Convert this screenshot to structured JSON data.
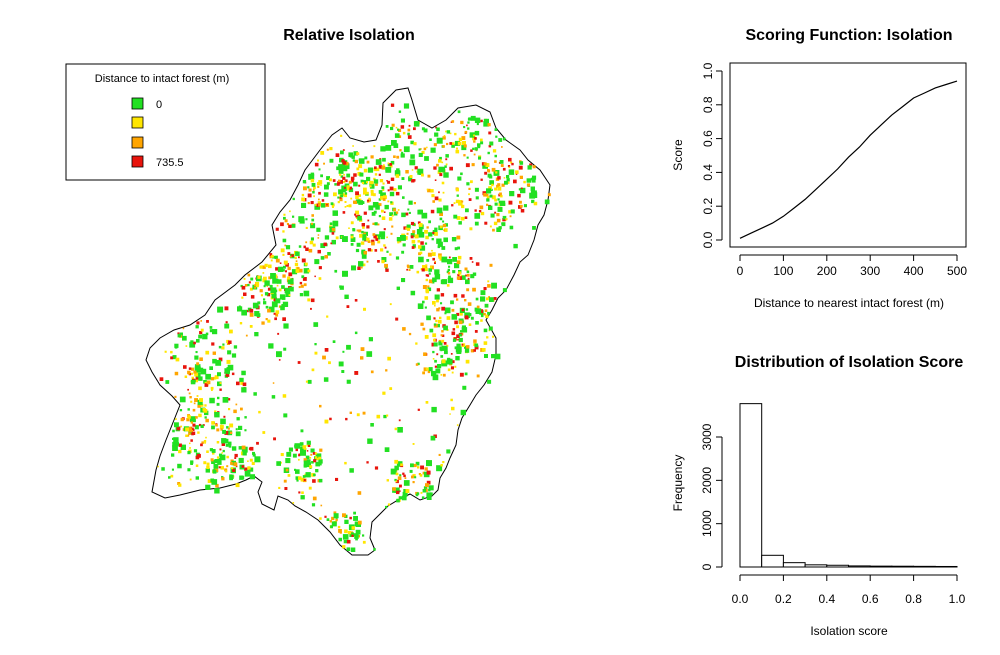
{
  "chart_data": [
    {
      "type": "map",
      "title": "Relative Isolation",
      "legend": {
        "title": "Distance to intact forest (m)",
        "placement": "top-left",
        "entries": [
          {
            "label": "0",
            "color": "#22e022"
          },
          {
            "label": "",
            "color": "#ffe600"
          },
          {
            "label": "",
            "color": "#ffa500"
          },
          {
            "label": "735.5",
            "color": "#e8140c"
          }
        ]
      },
      "colors": {
        "boundary": "#000000",
        "background": "#ffffff"
      }
    },
    {
      "type": "line",
      "title": "Scoring Function: Isolation",
      "xlabel": "Distance to nearest intact forest (m)",
      "ylabel": "Score",
      "xlim": [
        0,
        500
      ],
      "ylim": [
        0,
        1
      ],
      "xticks": [
        "0",
        "100",
        "200",
        "300",
        "400",
        "500"
      ],
      "yticks": [
        "0.0",
        "0.2",
        "0.4",
        "0.6",
        "0.8",
        "1.0"
      ],
      "x": [
        0,
        25,
        50,
        75,
        100,
        125,
        150,
        175,
        200,
        225,
        250,
        275,
        300,
        325,
        350,
        375,
        400,
        425,
        450,
        475,
        500
      ],
      "y": [
        0.01,
        0.04,
        0.07,
        0.1,
        0.14,
        0.19,
        0.24,
        0.3,
        0.36,
        0.42,
        0.49,
        0.55,
        0.62,
        0.68,
        0.74,
        0.79,
        0.84,
        0.87,
        0.9,
        0.92,
        0.94
      ],
      "grid": false
    },
    {
      "type": "histogram",
      "title": "Distribution of Isolation Score",
      "xlabel": "Isolation score",
      "ylabel": "Frequency",
      "xlim": [
        0,
        1
      ],
      "ylim": [
        0,
        3800
      ],
      "xticks": [
        "0.0",
        "0.2",
        "0.4",
        "0.6",
        "0.8",
        "1.0"
      ],
      "yticks": [
        "0",
        "1000",
        "2000",
        "3000"
      ],
      "bins": [
        [
          0,
          0.1
        ],
        [
          0.1,
          0.2
        ],
        [
          0.2,
          0.3
        ],
        [
          0.3,
          0.4
        ],
        [
          0.4,
          0.5
        ],
        [
          0.5,
          0.6
        ],
        [
          0.6,
          0.7
        ],
        [
          0.7,
          0.8
        ],
        [
          0.8,
          0.9
        ],
        [
          0.9,
          1.0
        ]
      ],
      "values": [
        3770,
        270,
        100,
        50,
        40,
        25,
        20,
        18,
        15,
        12
      ],
      "grid": false
    }
  ]
}
